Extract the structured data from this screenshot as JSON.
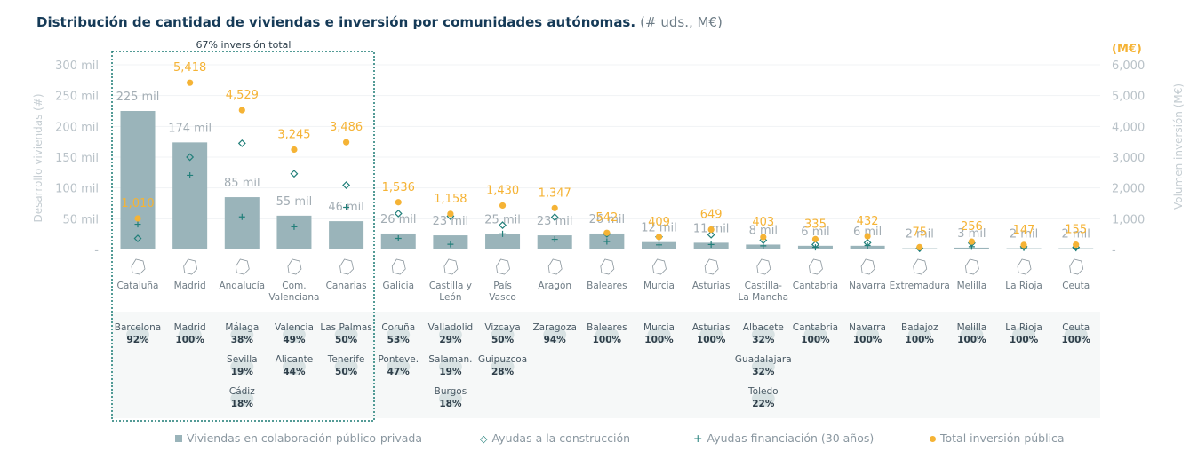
{
  "title": "Distribución de cantidad de viviendas e inversión por comunidades autónomas.",
  "title_units": "(# uds., M€)",
  "colors": {
    "bar": "#9ab4ba",
    "inversion": "#f5b335",
    "inversion_label": "#f5b335",
    "ayudas": "#227f7a",
    "axis_text": "#b9c2c8",
    "box": "#1a7a74",
    "title": "#153a57"
  },
  "highlight_box": {
    "label": "67% inversión total"
  },
  "legend": [
    {
      "label": "Viviendas en colaboración público-privada",
      "symbol": "square-icon"
    },
    {
      "label": "Ayudas a la construcción",
      "symbol": "diamond-icon"
    },
    {
      "label": "Ayudas financiación (30 años)",
      "symbol": "plus-icon"
    },
    {
      "label": "Total inversión pública",
      "symbol": "dot-icon"
    }
  ],
  "chart_data": {
    "type": "bar",
    "title": "Distribución de cantidad de viviendas e inversión por comunidades autónomas.",
    "ylabel_left": "Desarrollo viviendas (#)",
    "ylabel_right": "Volumen inversión (M€)",
    "right_unit": "(M€)",
    "ylim_left": [
      0,
      300000
    ],
    "ylim_right": [
      0,
      6000
    ],
    "left_ticks": [
      "-",
      "50 mil",
      "100 mil",
      "150 mil",
      "200 mil",
      "250 mil",
      "300 mil"
    ],
    "right_ticks": [
      "-",
      "1,000",
      "2,000",
      "3,000",
      "4,000",
      "5,000",
      "6,000"
    ],
    "categories": [
      [
        "Cataluña"
      ],
      [
        "Madrid"
      ],
      [
        "Andalucía"
      ],
      [
        "Com.",
        "Valenciana"
      ],
      [
        "Canarias"
      ],
      [
        "Galicia"
      ],
      [
        "Castilla y",
        "León"
      ],
      [
        "País",
        "Vasco"
      ],
      [
        "Aragón"
      ],
      [
        "Baleares"
      ],
      [
        "Murcia"
      ],
      [
        "Asturias"
      ],
      [
        "Castilla-",
        "La Mancha"
      ],
      [
        "Cantabria"
      ],
      [
        "Navarra"
      ],
      [
        "Extremadura"
      ],
      [
        "Melilla"
      ],
      [
        "La Rioja"
      ],
      [
        "Ceuta"
      ]
    ],
    "viviendas": [
      225000,
      174000,
      85000,
      55000,
      46000,
      26000,
      23000,
      25000,
      23000,
      26000,
      12000,
      11000,
      8000,
      6000,
      6000,
      2000,
      3000,
      2000,
      2000
    ],
    "viviendas_labels": [
      "225 mil",
      "174 mil",
      "85 mil",
      "55 mil",
      "46 mil",
      "26 mil",
      "23 mil",
      "25 mil",
      "23 mil",
      "26 mil",
      "12 mil",
      "11 mil",
      "8 mil",
      "6 mil",
      "6 mil",
      "2 mil",
      "3 mil",
      "2 mil",
      "2 mil"
    ],
    "ayudas_construccion": [
      360,
      3000,
      3450,
      2460,
      2090,
      1170,
      1080,
      790,
      1050,
      510,
      410,
      480,
      300,
      160,
      220,
      40,
      210,
      90,
      70
    ],
    "ayudas_financiacion": [
      820,
      2410,
      1060,
      740,
      1370,
      360,
      170,
      510,
      330,
      260,
      150,
      160,
      120,
      70,
      130,
      20,
      90,
      50,
      40
    ],
    "inversion_total": [
      1010,
      5418,
      4529,
      3245,
      3486,
      1536,
      1158,
      1430,
      1347,
      542,
      409,
      649,
      403,
      335,
      432,
      75,
      256,
      147,
      155
    ],
    "inversion_labels": [
      "1,010",
      "5,418",
      "4,529",
      "3,245",
      "3,486",
      "1,536",
      "1,158",
      "1,430",
      "1,347",
      "542",
      "409",
      "649",
      "403",
      "335",
      "432",
      "75",
      "256",
      "147",
      "155"
    ]
  },
  "provinces": [
    [
      [
        "Barcelona",
        "92%"
      ]
    ],
    [
      [
        "Madrid",
        "100%"
      ]
    ],
    [
      [
        "Málaga",
        "38%"
      ],
      [
        "Sevilla",
        "19%"
      ],
      [
        "Cádiz",
        "18%"
      ]
    ],
    [
      [
        "Valencia",
        "49%"
      ],
      [
        "Alicante",
        "44%"
      ]
    ],
    [
      [
        "Las Palmas",
        "50%"
      ],
      [
        "Tenerife",
        "50%"
      ]
    ],
    [
      [
        "Coruña",
        "53%"
      ],
      [
        "Ponteve.",
        "47%"
      ]
    ],
    [
      [
        "Valladolid",
        "29%"
      ],
      [
        "Salaman.",
        "19%"
      ],
      [
        "Burgos",
        "18%"
      ]
    ],
    [
      [
        "Vizcaya",
        "50%"
      ],
      [
        "Guipuzcoa",
        "28%"
      ]
    ],
    [
      [
        "Zaragoza",
        "94%"
      ]
    ],
    [
      [
        "Baleares",
        "100%"
      ]
    ],
    [
      [
        "Murcia",
        "100%"
      ]
    ],
    [
      [
        "Asturias",
        "100%"
      ]
    ],
    [
      [
        "Albacete",
        "32%"
      ],
      [
        "Guadalajara",
        "32%"
      ],
      [
        "Toledo",
        "22%"
      ]
    ],
    [
      [
        "Cantabria",
        "100%"
      ]
    ],
    [
      [
        "Navarra",
        "100%"
      ]
    ],
    [
      [
        "Badajoz",
        "100%"
      ]
    ],
    [
      [
        "Melilla",
        "100%"
      ]
    ],
    [
      [
        "La Rioja",
        "100%"
      ]
    ],
    [
      [
        "Ceuta",
        "100%"
      ]
    ]
  ]
}
